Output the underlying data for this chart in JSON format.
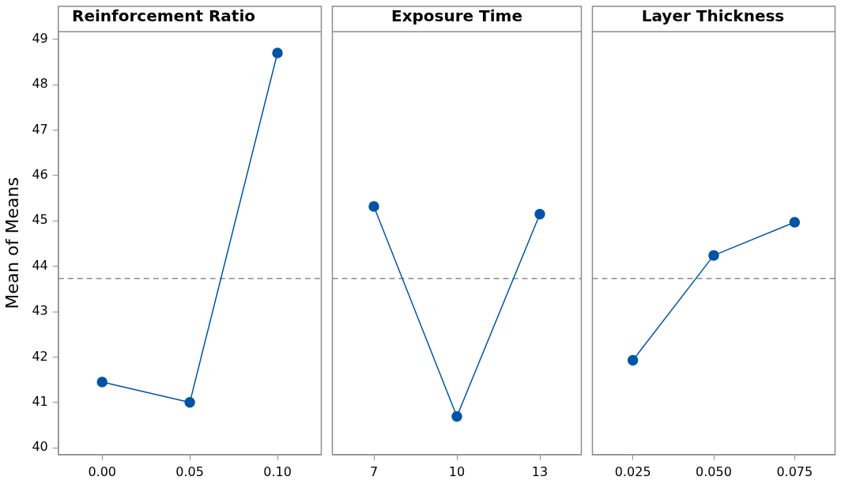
{
  "chart_data": [
    {
      "type": "line",
      "title": "Reinforcement Ratio",
      "ylabel": "Mean of Means",
      "categories": [
        "0.00",
        "0.05",
        "0.10"
      ],
      "series": [
        {
          "color": "#0054a6",
          "values": [
            41.45,
            41.0,
            48.7
          ]
        }
      ],
      "ylim": [
        39.85,
        49.17
      ],
      "yticks": [
        40,
        41,
        42,
        43,
        44,
        45,
        46,
        47,
        48,
        49
      ],
      "marker": "circle",
      "line_style": "solid",
      "grid": false,
      "legend": false,
      "ref_lines": [
        {
          "axis": "y",
          "value": 43.73,
          "color": "#8c8c8c",
          "line_style": "dashed"
        }
      ]
    },
    {
      "type": "line",
      "title": "Exposure Time",
      "categories": [
        "7",
        "10",
        "13"
      ],
      "series": [
        {
          "color": "#0054a6",
          "values": [
            45.32,
            40.69,
            45.15
          ]
        }
      ],
      "ylim": [
        39.85,
        49.17
      ],
      "yticks": [
        40,
        41,
        42,
        43,
        44,
        45,
        46,
        47,
        48,
        49
      ],
      "tick_labels": "x",
      "marker": "circle",
      "line_style": "solid",
      "grid": false,
      "legend": false,
      "ref_lines": [
        {
          "axis": "y",
          "value": 43.73,
          "color": "#8c8c8c",
          "line_style": "dashed"
        }
      ]
    },
    {
      "type": "line",
      "title": "Layer Thickness",
      "categories": [
        "0.025",
        "0.050",
        "0.075"
      ],
      "series": [
        {
          "color": "#0054a6",
          "values": [
            41.93,
            44.24,
            44.97
          ]
        }
      ],
      "ylim": [
        39.85,
        49.17
      ],
      "yticks": [
        40,
        41,
        42,
        43,
        44,
        45,
        46,
        47,
        48,
        49
      ],
      "tick_labels": "x",
      "marker": "circle",
      "line_style": "solid",
      "grid": false,
      "legend": false,
      "ref_lines": [
        {
          "axis": "y",
          "value": 43.73,
          "color": "#8c8c8c",
          "line_style": "dashed"
        }
      ]
    }
  ]
}
